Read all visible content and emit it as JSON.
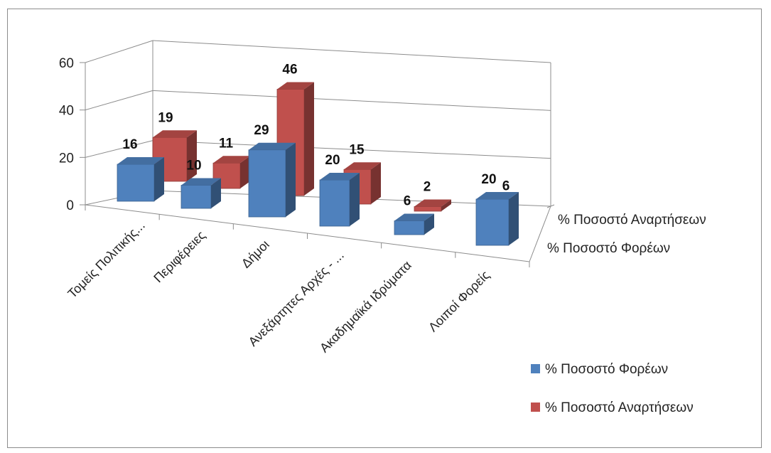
{
  "chart_data": {
    "type": "bar",
    "subtype": "3d-column",
    "title": "",
    "categories": [
      "Τομείς Πολιτικής...",
      "Περιφέρειες",
      "Δήμοι",
      "Ανεξάρτητες Αρχές - ...",
      "Ακαδημαϊκά Ιδρύματα",
      "Λοιποί Φορείς"
    ],
    "series": [
      {
        "name": "% Ποσοστό Φορέων",
        "values": [
          16,
          10,
          29,
          20,
          6,
          20
        ],
        "color": "#4f81bd"
      },
      {
        "name": "% Ποσοστό Αναρτήσεων",
        "values": [
          19,
          11,
          46,
          15,
          2,
          6
        ],
        "color": "#c0504d"
      }
    ],
    "depth_axis_labels": [
      "% Ποσοστό Αναρτήσεων",
      "% Ποσοστό Φορέων"
    ],
    "y_ticks": [
      "0",
      "20",
      "40",
      "60"
    ],
    "ylim": [
      0,
      60
    ],
    "grid": true,
    "legend_position": "bottom-right"
  }
}
